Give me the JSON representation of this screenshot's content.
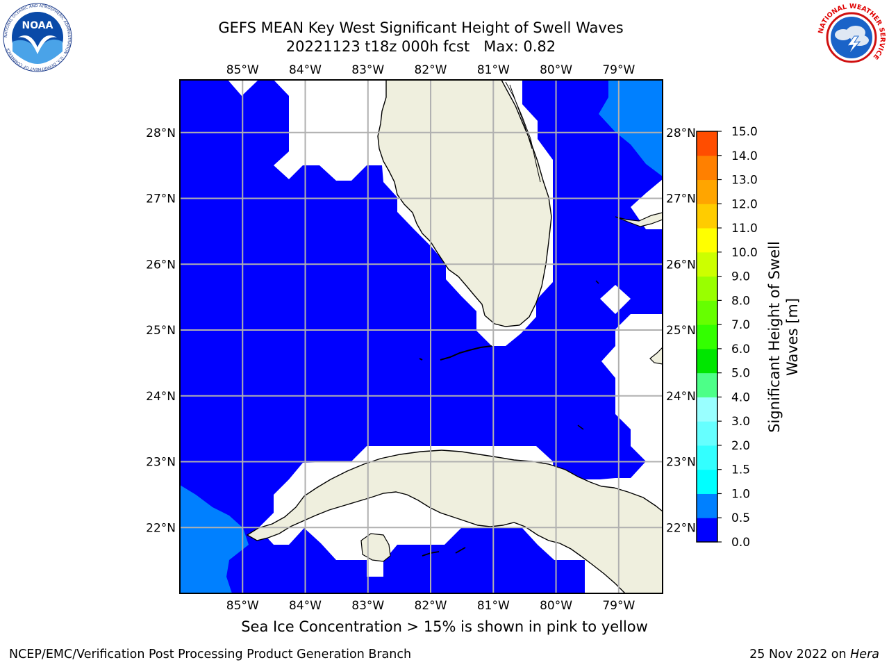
{
  "header": {
    "title_line1": "GEFS MEAN Key West Significant Height of Swell Waves",
    "title_line2": "20221123 t18z 000h fcst   Max: 0.82"
  },
  "logos": {
    "left": {
      "name": "noaa-logo",
      "text": "NOAA",
      "ring_text": "NATIONAL OCEANIC AND ATMOSPHERIC ADMINISTRATION · U.S. DEPARTMENT OF COMMERCE"
    },
    "right": {
      "name": "nws-logo",
      "ring_text": "NATIONAL WEATHER SERVICE"
    }
  },
  "map": {
    "lon_labels": [
      "85°W",
      "84°W",
      "83°W",
      "82°W",
      "81°W",
      "80°W",
      "79°W"
    ],
    "lat_labels": [
      "28°N",
      "27°N",
      "26°N",
      "25°N",
      "24°N",
      "23°N",
      "22°N"
    ],
    "lon_range": [
      -86.0,
      -78.3
    ],
    "lat_range": [
      21.0,
      28.8
    ],
    "gridlines": true
  },
  "colorbar": {
    "label": "Significant Height of Swell Waves [m]",
    "ticks": [
      "15.0",
      "14.0",
      "13.0",
      "12.0",
      "11.0",
      "10.0",
      "9.0",
      "8.0",
      "7.0",
      "6.0",
      "5.0",
      "4.0",
      "3.0",
      "2.0",
      "1.5",
      "1.0",
      "0.5",
      "0.0"
    ],
    "colors": [
      "#0000ff",
      "#0080ff",
      "#00ffff",
      "#33ffff",
      "#66ffff",
      "#99ffff",
      "#4dff88",
      "#00e600",
      "#33ff00",
      "#66ff00",
      "#99ff00",
      "#ccff00",
      "#ffff00",
      "#ffcc00",
      "#ffa500",
      "#ff8000",
      "#ff4d00",
      "#ff0000"
    ],
    "land_color": "#efefde",
    "ocean_color": "#0000ff"
  },
  "notes": {
    "ice": "Sea Ice Concentration > 15% is shown in pink to yellow"
  },
  "footer": {
    "left": "NCEP/EMC/Verification Post Processing Product Generation Branch",
    "date": "25 Nov 2022 on ",
    "machine": "Hera"
  }
}
